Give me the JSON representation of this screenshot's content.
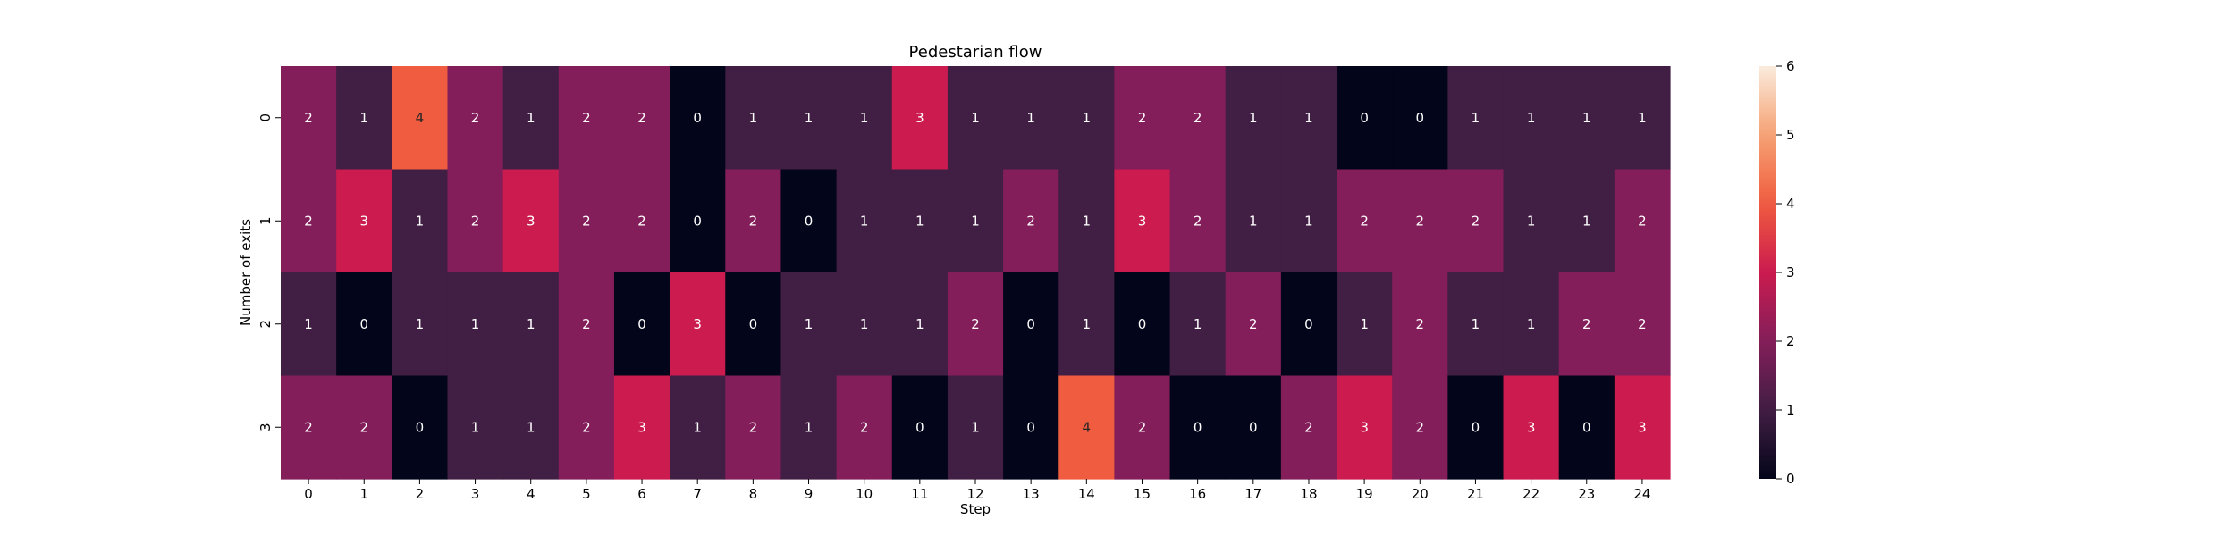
{
  "chart_data": {
    "type": "heatmap",
    "title": "Pedestarian flow",
    "xlabel": "Step",
    "ylabel": "Number of exits",
    "x_categories": [
      "0",
      "1",
      "2",
      "3",
      "4",
      "5",
      "6",
      "7",
      "8",
      "9",
      "10",
      "11",
      "12",
      "13",
      "14",
      "15",
      "16",
      "17",
      "18",
      "19",
      "20",
      "21",
      "22",
      "23",
      "24"
    ],
    "y_categories": [
      "0",
      "1",
      "2",
      "3"
    ],
    "values": [
      [
        2,
        1,
        4,
        2,
        1,
        2,
        2,
        0,
        1,
        1,
        1,
        3,
        1,
        1,
        1,
        2,
        2,
        1,
        1,
        0,
        0,
        1,
        1,
        1,
        1
      ],
      [
        2,
        3,
        1,
        2,
        3,
        2,
        2,
        0,
        2,
        0,
        1,
        1,
        1,
        2,
        1,
        3,
        2,
        1,
        1,
        2,
        2,
        2,
        1,
        1,
        2
      ],
      [
        1,
        0,
        1,
        1,
        1,
        2,
        0,
        3,
        0,
        1,
        1,
        1,
        2,
        0,
        1,
        0,
        1,
        2,
        0,
        1,
        2,
        1,
        1,
        2,
        2
      ],
      [
        2,
        2,
        0,
        1,
        1,
        2,
        3,
        1,
        2,
        1,
        2,
        0,
        1,
        0,
        4,
        2,
        0,
        0,
        2,
        3,
        2,
        0,
        3,
        0,
        3
      ]
    ],
    "colorbar": {
      "min": 0,
      "max": 6,
      "ticks": [
        "0",
        "1",
        "2",
        "3",
        "4",
        "5",
        "6"
      ]
    },
    "colormap": "rocket"
  }
}
